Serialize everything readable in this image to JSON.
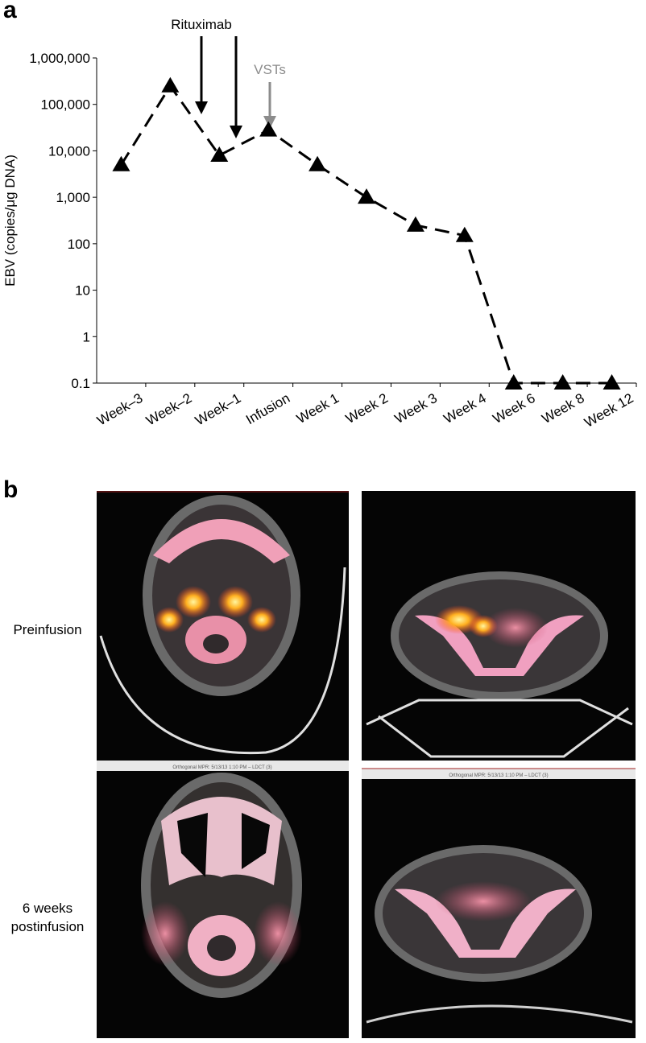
{
  "chart_data": {
    "type": "line",
    "color": "#000000",
    "log_scale": true,
    "y_label": "EBV (copies/μg DNA)",
    "categories": [
      "Week–3",
      "Week–2",
      "Week–1",
      "Infusion",
      "Week 1",
      "Week 2",
      "Week 3",
      "Week 4",
      "Week 6",
      "Week 8",
      "Week 12"
    ],
    "values": [
      5000,
      250000,
      8000,
      28000,
      5000,
      1000,
      250,
      150,
      0.1,
      0.1,
      0.1
    ],
    "ylim": [
      0.1,
      1000000
    ],
    "yticks": [
      {
        "value": 1000000,
        "label": "1,000,000"
      },
      {
        "value": 100000,
        "label": "100,000"
      },
      {
        "value": 10000,
        "label": "10,000"
      },
      {
        "value": 1000,
        "label": "1,000"
      },
      100,
      10,
      1,
      0.1
    ],
    "annotations": [
      {
        "text": "Rituximab",
        "color": "#000000"
      },
      {
        "text": "VSTs",
        "color": "#8c8c8c"
      }
    ]
  },
  "panel_labels": [
    "a",
    "b"
  ],
  "scan_panel": {
    "row_labels": [
      "Preinfusion",
      "6 weeks postinfusion"
    ],
    "image_captions": [
      "Orthogonal MPR: 5/13/13 1:10 PM – LDCT (3)",
      "Orthogonal MPR: 5/13/13 1:10 PM – LDCT (3)"
    ]
  }
}
